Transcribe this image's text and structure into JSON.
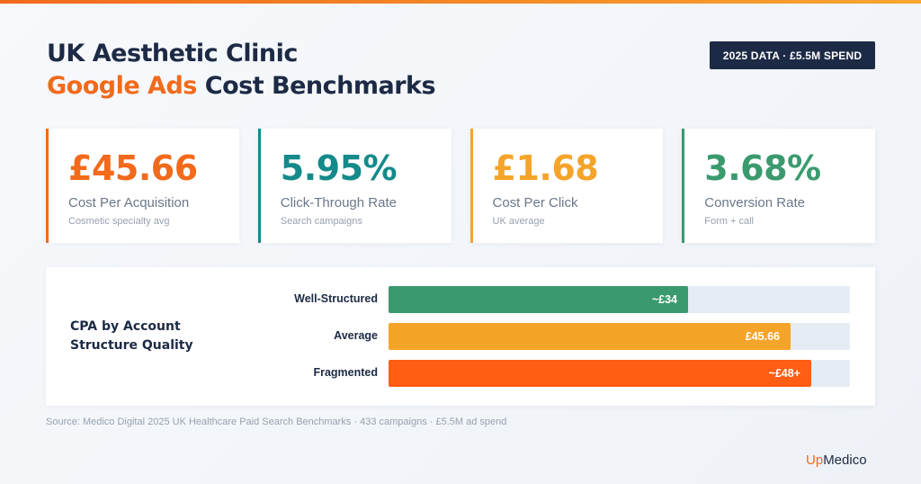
{
  "header": {
    "title_line1": "UK Aesthetic Clinic",
    "title_accent": "Google Ads",
    "title_rest": " Cost Benchmarks",
    "badge": "2025 DATA · £5.5M SPEND"
  },
  "colors": {
    "navy": "#1c2a45",
    "orange": "#f26a1b",
    "teal": "#148a8a",
    "amber": "#f5a42a",
    "green": "#3a9a6e",
    "bar_red": "#ff5e14"
  },
  "cards": [
    {
      "value": "£45.66",
      "label": "Cost Per Acquisition",
      "sub": "Cosmetic specialty avg",
      "color": "#f26a1b"
    },
    {
      "value": "5.95%",
      "label": "Click-Through Rate",
      "sub": "Search campaigns",
      "color": "#148a8a"
    },
    {
      "value": "£1.68",
      "label": "Cost Per Click",
      "sub": "UK average",
      "color": "#f5a42a"
    },
    {
      "value": "3.68%",
      "label": "Conversion Rate",
      "sub": "Form + call",
      "color": "#3a9a6e"
    }
  ],
  "chart_data": {
    "type": "bar",
    "orientation": "horizontal",
    "title": "CPA by Account Structure Quality",
    "categories": [
      "Well-Structured",
      "Average",
      "Fragmented"
    ],
    "values": [
      34,
      45.66,
      48
    ],
    "value_labels": [
      "~£34",
      "£45.66",
      "~£48+"
    ],
    "colors": [
      "#3a9a6e",
      "#f5a42a",
      "#ff5e14"
    ],
    "xlim": [
      0,
      52.4
    ],
    "grid": false
  },
  "footer": {
    "source": "Source: Medico Digital 2025 UK Healthcare Paid Search Benchmarks · 433 campaigns · £5.5M ad spend",
    "logo_up": "Up",
    "logo_medico": "Medico"
  }
}
